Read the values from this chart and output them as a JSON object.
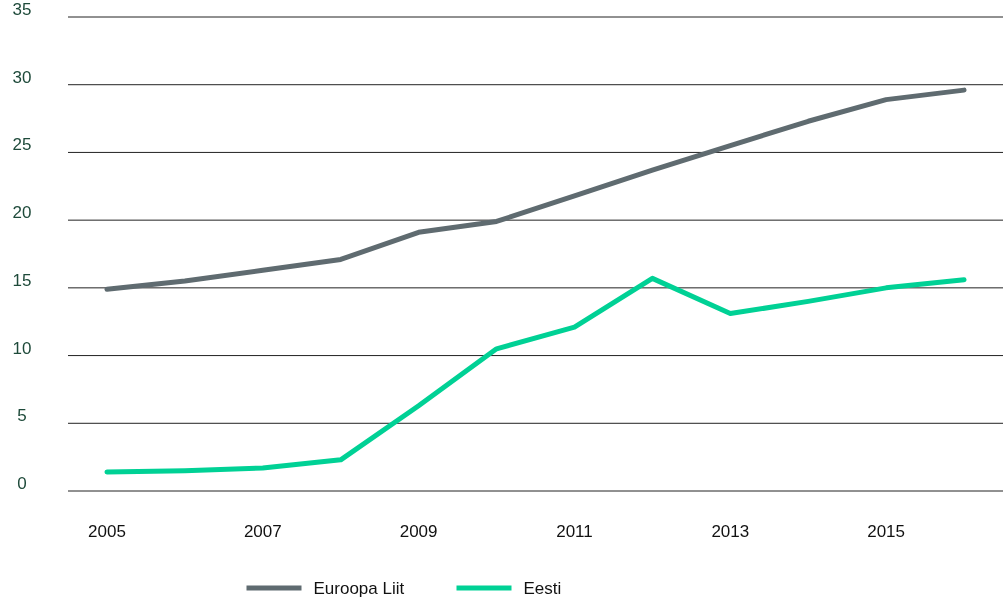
{
  "chart_data": {
    "type": "line",
    "categories": [
      "2005",
      null,
      "2007",
      null,
      "2009",
      null,
      "2011",
      null,
      "2013",
      null,
      "2015",
      null
    ],
    "series": [
      {
        "name": "Euroopa Liit",
        "color": "#5f6b70",
        "values": [
          14.9,
          15.5,
          16.3,
          17.1,
          19.1,
          19.9,
          21.8,
          23.7,
          25.5,
          27.3,
          28.9,
          29.6
        ]
      },
      {
        "name": "Eesti",
        "color": "#00d195",
        "values": [
          1.4,
          1.5,
          1.7,
          2.3,
          6.3,
          10.5,
          12.1,
          15.7,
          13.1,
          14.0,
          15.0,
          15.6
        ]
      }
    ],
    "ylim": [
      0,
      35
    ],
    "yticks": [
      0,
      5,
      10,
      15,
      20,
      25,
      30,
      35
    ],
    "grid": "y",
    "legend": "bottom",
    "marker": "none",
    "line_style": "solid"
  }
}
